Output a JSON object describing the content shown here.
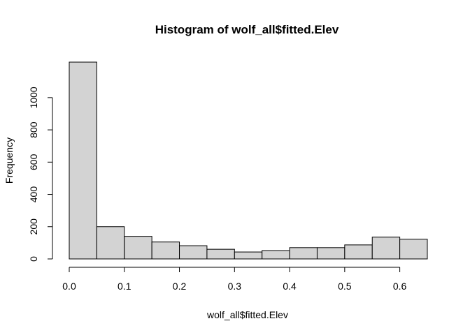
{
  "chart_data": {
    "type": "bar",
    "title": "Histogram of wolf_all$fitted.Elev",
    "xlabel": "wolf_all$fitted.Elev",
    "ylabel": "Frequency",
    "bin_edges": [
      0.0,
      0.05,
      0.1,
      0.15,
      0.2,
      0.25,
      0.3,
      0.35,
      0.4,
      0.45,
      0.5,
      0.55,
      0.6,
      0.65
    ],
    "values": [
      1220,
      200,
      140,
      105,
      82,
      60,
      43,
      52,
      70,
      70,
      87,
      135,
      122
    ],
    "xlim": [
      0.0,
      0.65
    ],
    "ylim": [
      0,
      1220
    ],
    "x_ticks": [
      0.0,
      0.1,
      0.2,
      0.3,
      0.4,
      0.5,
      0.6
    ],
    "x_tick_labels": [
      "0.0",
      "0.1",
      "0.2",
      "0.3",
      "0.4",
      "0.5",
      "0.6"
    ],
    "y_ticks": [
      0,
      200,
      400,
      600,
      800,
      1000
    ],
    "y_tick_labels": [
      "0",
      "200",
      "400",
      "600",
      "800",
      "1000"
    ],
    "bar_color": "#d3d3d3",
    "grid": false,
    "legend": "none"
  }
}
